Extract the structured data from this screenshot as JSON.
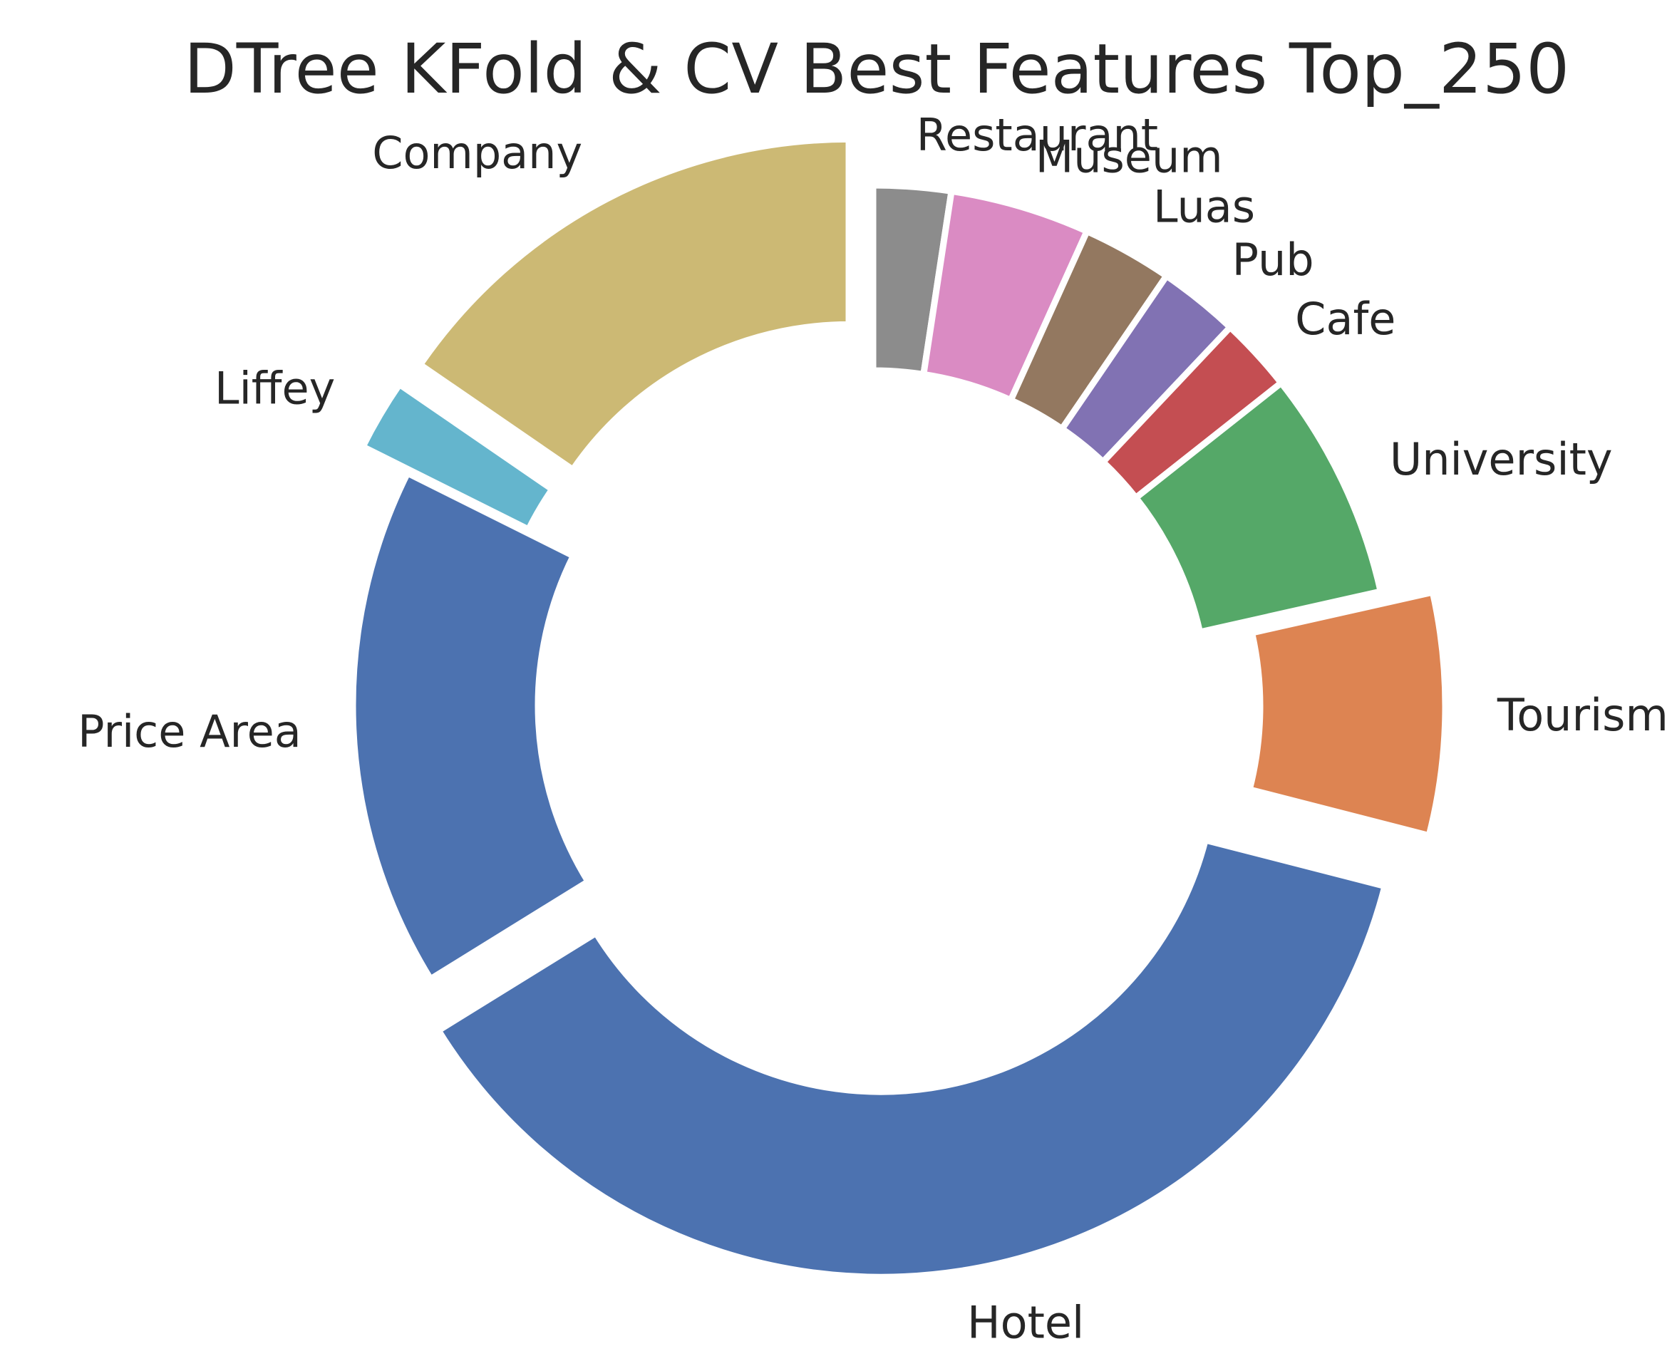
{
  "chart_data": {
    "type": "pie",
    "style": "donut",
    "title": "DTree KFold & CV Best Features Top_250",
    "start_angle_deg": 90,
    "counterclock": false,
    "slices": [
      {
        "label": "Restaurant",
        "value": 2.5,
        "color": "#8c8c8c",
        "exploded": false
      },
      {
        "label": "Museum",
        "value": 4.5,
        "color": "#da8bc3",
        "exploded": false
      },
      {
        "label": "Luas",
        "value": 2.9,
        "color": "#937860",
        "exploded": false
      },
      {
        "label": "Pub",
        "value": 2.6,
        "color": "#8172b3",
        "exploded": false
      },
      {
        "label": "Cafe",
        "value": 2.4,
        "color": "#c44e52",
        "exploded": false
      },
      {
        "label": "University",
        "value": 7.4,
        "color": "#55a868",
        "exploded": false
      },
      {
        "label": "Tourism",
        "value": 7.8,
        "color": "#dd8452",
        "exploded": true
      },
      {
        "label": "Hotel",
        "value": 38.6,
        "color": "#4c72b0",
        "exploded": true
      },
      {
        "label": "Price Area",
        "value": 16.8,
        "color": "#4c72b0",
        "exploded": false
      },
      {
        "label": "Liffey",
        "value": 2.3,
        "color": "#64b5cd",
        "exploded": true
      },
      {
        "label": "Company",
        "value": 16.0,
        "color": "#ccb974",
        "exploded": true
      }
    ]
  }
}
